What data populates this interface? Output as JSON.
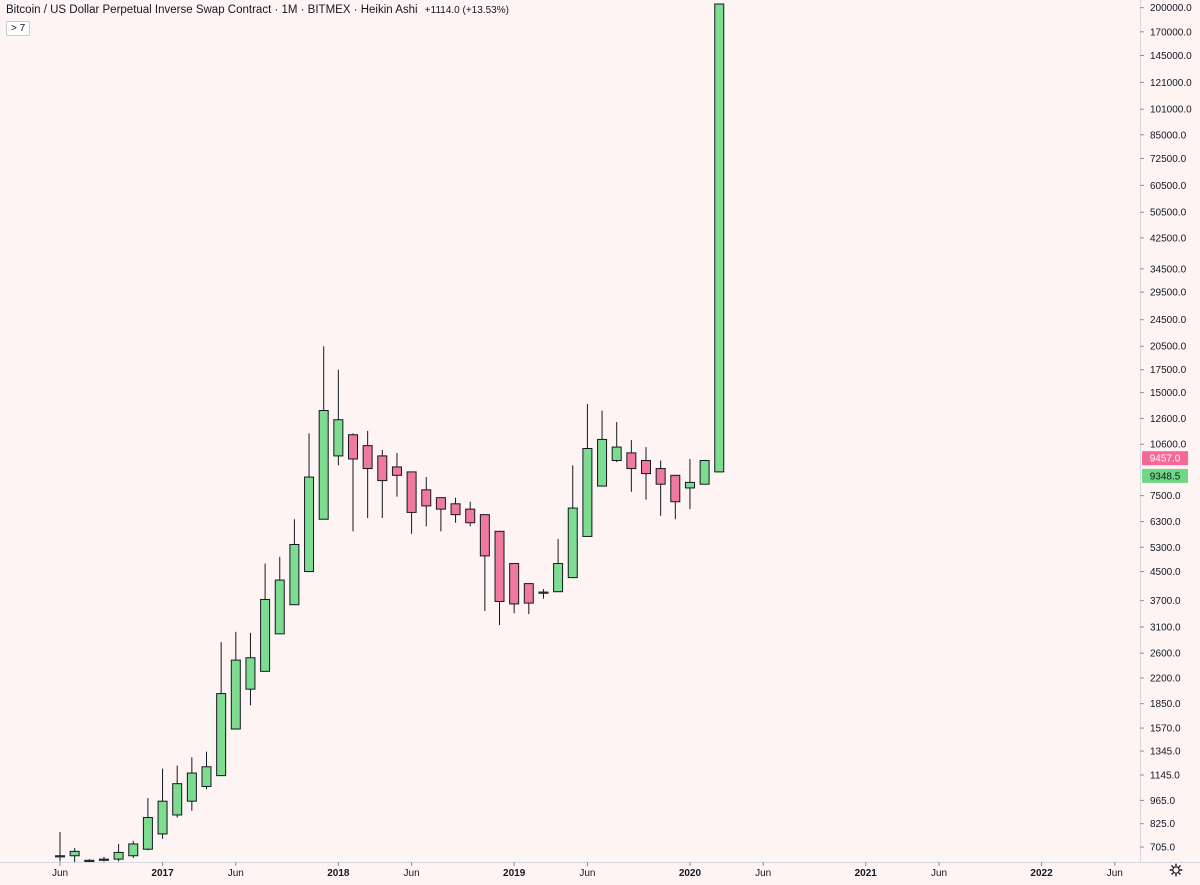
{
  "header": {
    "title": "Bitcoin / US Dollar Perpetual Inverse Swap Contract · 1M · BITMEX · Heikin Ashi",
    "change": "+1114.0 (+13.53%)",
    "collapse_label": "> 7"
  },
  "settings_icon": "gear-icon",
  "colors": {
    "background": "#fff4f4",
    "up": "#7ddc8f",
    "down": "#f07a9f",
    "outline": "#131722",
    "badge_pink": "#f7679a",
    "badge_green": "#6fd884"
  },
  "chart_data": {
    "type": "candlestick",
    "style": "Heikin Ashi",
    "y_scale": "log",
    "ylim": [
      655,
      205000
    ],
    "y_ticks": [
      "200000.0",
      "170000.0",
      "145000.0",
      "121000.0",
      "101000.0",
      "85000.0",
      "72500.0",
      "60500.0",
      "50500.0",
      "42500.0",
      "34500.0",
      "29500.0",
      "24500.0",
      "20500.0",
      "17500.0",
      "15000.0",
      "12600.0",
      "10600.0",
      "7500.0",
      "6300.0",
      "5300.0",
      "4500.0",
      "3700.0",
      "3100.0",
      "2600.0",
      "2200.0",
      "1850.0",
      "1570.0",
      "1345.0",
      "1145.0",
      "965.0",
      "825.0",
      "705.0"
    ],
    "x_ticks": [
      {
        "label": "Jun",
        "date": "2016-06"
      },
      {
        "label": "2017",
        "date": "2017-01"
      },
      {
        "label": "Jun",
        "date": "2017-06"
      },
      {
        "label": "2018",
        "date": "2018-01"
      },
      {
        "label": "Jun",
        "date": "2018-06"
      },
      {
        "label": "2019",
        "date": "2019-01"
      },
      {
        "label": "Jun",
        "date": "2019-06"
      },
      {
        "label": "2020",
        "date": "2020-01"
      },
      {
        "label": "Jun",
        "date": "2020-06"
      },
      {
        "label": "2021",
        "date": "2021-01"
      },
      {
        "label": "Jun",
        "date": "2021-06"
      },
      {
        "label": "2022",
        "date": "2022-01"
      },
      {
        "label": "Jun",
        "date": "2022-06"
      }
    ],
    "price_labels": [
      {
        "value": "9457.0",
        "price": 9457,
        "color": "#f7679a"
      },
      {
        "value": "9348.5",
        "price": 9348.5,
        "color": "#6fd884"
      }
    ],
    "candles": [
      {
        "date": "2016-06",
        "o": 660,
        "h": 780,
        "l": 640,
        "c": 665
      },
      {
        "date": "2016-07",
        "o": 665,
        "h": 700,
        "l": 630,
        "c": 685
      },
      {
        "date": "2016-08",
        "o": 640,
        "h": 650,
        "l": 620,
        "c": 645
      },
      {
        "date": "2016-09",
        "o": 645,
        "h": 660,
        "l": 640,
        "c": 650
      },
      {
        "date": "2016-10",
        "o": 650,
        "h": 720,
        "l": 640,
        "c": 680
      },
      {
        "date": "2016-11",
        "o": 665,
        "h": 735,
        "l": 655,
        "c": 720
      },
      {
        "date": "2016-12",
        "o": 695,
        "h": 980,
        "l": 690,
        "c": 860
      },
      {
        "date": "2017-01",
        "o": 770,
        "h": 1195,
        "l": 745,
        "c": 960
      },
      {
        "date": "2017-02",
        "o": 875,
        "h": 1220,
        "l": 860,
        "c": 1080
      },
      {
        "date": "2017-03",
        "o": 960,
        "h": 1290,
        "l": 900,
        "c": 1160
      },
      {
        "date": "2017-04",
        "o": 1060,
        "h": 1340,
        "l": 1040,
        "c": 1210
      },
      {
        "date": "2017-05",
        "o": 1140,
        "h": 2800,
        "l": 1140,
        "c": 1980
      },
      {
        "date": "2017-06",
        "o": 1560,
        "h": 3000,
        "l": 1560,
        "c": 2480
      },
      {
        "date": "2017-07",
        "o": 2040,
        "h": 2980,
        "l": 1830,
        "c": 2520
      },
      {
        "date": "2017-08",
        "o": 2300,
        "h": 4750,
        "l": 2300,
        "c": 3730
      },
      {
        "date": "2017-09",
        "o": 2960,
        "h": 4970,
        "l": 2960,
        "c": 4250
      },
      {
        "date": "2017-10",
        "o": 3600,
        "h": 6400,
        "l": 3600,
        "c": 5400
      },
      {
        "date": "2017-11",
        "o": 4500,
        "h": 11400,
        "l": 4500,
        "c": 8500
      },
      {
        "date": "2017-12",
        "o": 6400,
        "h": 20500,
        "l": 6400,
        "c": 13300
      },
      {
        "date": "2018-01",
        "o": 9800,
        "h": 17500,
        "l": 9200,
        "c": 12500
      },
      {
        "date": "2018-02",
        "o": 11300,
        "h": 11400,
        "l": 5900,
        "c": 9600
      },
      {
        "date": "2018-03",
        "o": 10500,
        "h": 11600,
        "l": 6450,
        "c": 9000
      },
      {
        "date": "2018-04",
        "o": 9800,
        "h": 10200,
        "l": 6450,
        "c": 8300
      },
      {
        "date": "2018-05",
        "o": 9100,
        "h": 10000,
        "l": 7450,
        "c": 8600
      },
      {
        "date": "2018-06",
        "o": 8800,
        "h": 8800,
        "l": 5800,
        "c": 6700
      },
      {
        "date": "2018-07",
        "o": 7800,
        "h": 8500,
        "l": 6100,
        "c": 7000
      },
      {
        "date": "2018-08",
        "o": 7400,
        "h": 7400,
        "l": 5900,
        "c": 6850
      },
      {
        "date": "2018-09",
        "o": 7100,
        "h": 7400,
        "l": 6250,
        "c": 6600
      },
      {
        "date": "2018-10",
        "o": 6850,
        "h": 7200,
        "l": 6100,
        "c": 6250
      },
      {
        "date": "2018-11",
        "o": 6600,
        "h": 6600,
        "l": 3450,
        "c": 5000
      },
      {
        "date": "2018-12",
        "o": 5900,
        "h": 5900,
        "l": 3140,
        "c": 3680
      },
      {
        "date": "2019-01",
        "o": 4750,
        "h": 4750,
        "l": 3400,
        "c": 3620
      },
      {
        "date": "2019-02",
        "o": 4150,
        "h": 4150,
        "l": 3380,
        "c": 3640
      },
      {
        "date": "2019-03",
        "o": 3890,
        "h": 4000,
        "l": 3750,
        "c": 3920
      },
      {
        "date": "2019-04",
        "o": 3930,
        "h": 5600,
        "l": 3930,
        "c": 4750
      },
      {
        "date": "2019-05",
        "o": 4320,
        "h": 9200,
        "l": 4320,
        "c": 6900
      },
      {
        "date": "2019-06",
        "o": 5700,
        "h": 13900,
        "l": 5700,
        "c": 10300
      },
      {
        "date": "2019-07",
        "o": 8000,
        "h": 13300,
        "l": 8000,
        "c": 10950
      },
      {
        "date": "2019-08",
        "o": 9500,
        "h": 12300,
        "l": 9400,
        "c": 10400
      },
      {
        "date": "2019-09",
        "o": 10000,
        "h": 10900,
        "l": 7700,
        "c": 9000
      },
      {
        "date": "2019-10",
        "o": 9500,
        "h": 10400,
        "l": 7300,
        "c": 8700
      },
      {
        "date": "2019-11",
        "o": 9000,
        "h": 9500,
        "l": 6550,
        "c": 8100
      },
      {
        "date": "2019-12",
        "o": 8600,
        "h": 8600,
        "l": 6400,
        "c": 7200
      },
      {
        "date": "2020-01",
        "o": 7900,
        "h": 9600,
        "l": 6850,
        "c": 8200
      },
      {
        "date": "2020-02",
        "o": 8100,
        "h": 9500,
        "l": 8100,
        "c": 9500
      },
      {
        "date": "2020-03",
        "o": 8800,
        "h": 205000,
        "l": 8800,
        "c": 205000
      }
    ]
  }
}
